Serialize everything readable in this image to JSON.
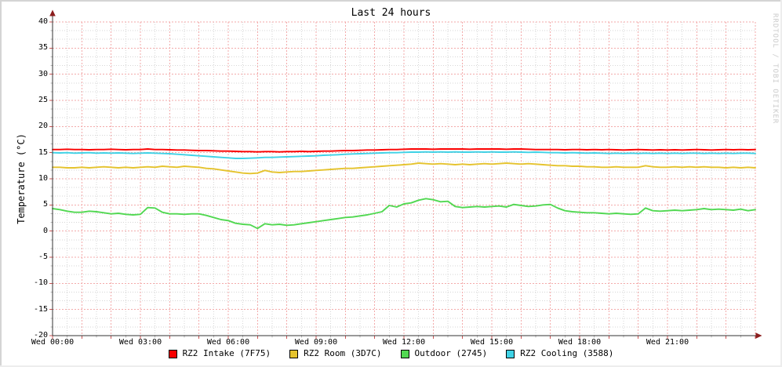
{
  "header": {
    "title": "Last 24 hours"
  },
  "watermark": "RRDTOOL / TOBI OETIKER",
  "colors": {
    "background": "#ffffff",
    "axis": "#333333",
    "arrow": "#8b1d1d",
    "grid_minor": "#d6d6d6",
    "grid_major": "#f3aaaa",
    "tick_major": "#cc5555",
    "tick_minor": "#bbbbbb",
    "text": "#000000",
    "watermark": "#cbcbcb"
  },
  "chart_data": {
    "type": "line",
    "title": "Last 24 hours",
    "xlabel": "",
    "ylabel": "Temperature (°C)",
    "ylim": [
      -20,
      40
    ],
    "xlim_hours": [
      0,
      24
    ],
    "yticks": [
      40,
      35,
      30,
      25,
      20,
      15,
      10,
      5,
      0,
      -5,
      -10,
      -15,
      -20
    ],
    "xticks": [
      {
        "hour": 0,
        "label": "Wed 00:00"
      },
      {
        "hour": 3,
        "label": "Wed 03:00"
      },
      {
        "hour": 6,
        "label": "Wed 06:00"
      },
      {
        "hour": 9,
        "label": "Wed 09:00"
      },
      {
        "hour": 12,
        "label": "Wed 12:00"
      },
      {
        "hour": 15,
        "label": "Wed 15:00"
      },
      {
        "hour": 18,
        "label": "Wed 18:00"
      },
      {
        "hour": 21,
        "label": "Wed 21:00"
      }
    ],
    "grid": {
      "x_major_step_hours": 1,
      "x_minor_step_hours": 0.5,
      "y_major_step": 5,
      "y_minor_divisions_per_major": 3,
      "grid_on": true
    },
    "legend_position": "bottom",
    "sample_step_hours": 0.25,
    "series": [
      {
        "name": "RZ2 Intake (7F75)",
        "color": "#fa0000",
        "values": [
          15.6,
          15.6,
          15.65,
          15.6,
          15.6,
          15.55,
          15.6,
          15.6,
          15.65,
          15.6,
          15.55,
          15.6,
          15.6,
          15.7,
          15.6,
          15.6,
          15.55,
          15.5,
          15.5,
          15.45,
          15.4,
          15.4,
          15.35,
          15.3,
          15.3,
          15.25,
          15.2,
          15.2,
          15.15,
          15.2,
          15.2,
          15.15,
          15.2,
          15.2,
          15.25,
          15.2,
          15.25,
          15.3,
          15.3,
          15.35,
          15.4,
          15.4,
          15.45,
          15.5,
          15.5,
          15.55,
          15.6,
          15.6,
          15.65,
          15.7,
          15.7,
          15.7,
          15.65,
          15.7,
          15.7,
          15.7,
          15.7,
          15.65,
          15.7,
          15.7,
          15.7,
          15.7,
          15.65,
          15.7,
          15.7,
          15.65,
          15.6,
          15.6,
          15.6,
          15.6,
          15.55,
          15.6,
          15.6,
          15.55,
          15.6,
          15.55,
          15.6,
          15.55,
          15.5,
          15.55,
          15.6,
          15.55,
          15.5,
          15.55,
          15.5,
          15.55,
          15.5,
          15.55,
          15.6,
          15.55,
          15.5,
          15.55,
          15.6,
          15.55,
          15.6,
          15.55,
          15.6
        ]
      },
      {
        "name": "RZ2 Room (3D7C)",
        "color": "#e5c32e",
        "values": [
          12.2,
          12.2,
          12.1,
          12.1,
          12.2,
          12.1,
          12.2,
          12.3,
          12.2,
          12.1,
          12.2,
          12.1,
          12.2,
          12.3,
          12.2,
          12.4,
          12.3,
          12.2,
          12.4,
          12.3,
          12.2,
          12.0,
          11.9,
          11.7,
          11.5,
          11.3,
          11.1,
          11.0,
          11.1,
          11.6,
          11.3,
          11.2,
          11.3,
          11.4,
          11.4,
          11.5,
          11.6,
          11.7,
          11.8,
          11.9,
          12.0,
          12.0,
          12.1,
          12.2,
          12.3,
          12.4,
          12.5,
          12.6,
          12.7,
          12.8,
          13.0,
          12.9,
          12.8,
          12.9,
          12.8,
          12.7,
          12.8,
          12.7,
          12.8,
          12.9,
          12.8,
          12.9,
          13.0,
          12.9,
          12.8,
          12.9,
          12.8,
          12.7,
          12.6,
          12.5,
          12.5,
          12.4,
          12.4,
          12.3,
          12.3,
          12.2,
          12.2,
          12.3,
          12.2,
          12.2,
          12.2,
          12.5,
          12.3,
          12.2,
          12.2,
          12.3,
          12.2,
          12.3,
          12.2,
          12.3,
          12.2,
          12.2,
          12.1,
          12.2,
          12.1,
          12.2,
          12.1
        ]
      },
      {
        "name": "Outdoor (2745)",
        "color": "#52d852",
        "values": [
          4.3,
          4.1,
          3.8,
          3.6,
          3.6,
          3.8,
          3.7,
          3.5,
          3.3,
          3.4,
          3.2,
          3.1,
          3.2,
          4.5,
          4.4,
          3.6,
          3.3,
          3.3,
          3.2,
          3.3,
          3.3,
          3.0,
          2.6,
          2.2,
          2.0,
          1.5,
          1.3,
          1.2,
          0.5,
          1.4,
          1.2,
          1.3,
          1.1,
          1.2,
          1.4,
          1.6,
          1.8,
          2.0,
          2.2,
          2.4,
          2.6,
          2.7,
          2.9,
          3.1,
          3.4,
          3.7,
          4.9,
          4.6,
          5.2,
          5.4,
          5.9,
          6.2,
          6.0,
          5.6,
          5.7,
          4.7,
          4.5,
          4.6,
          4.7,
          4.6,
          4.7,
          4.8,
          4.6,
          5.1,
          4.9,
          4.7,
          4.8,
          5.0,
          5.1,
          4.4,
          3.9,
          3.7,
          3.6,
          3.5,
          3.5,
          3.4,
          3.3,
          3.4,
          3.3,
          3.2,
          3.3,
          4.4,
          3.9,
          3.8,
          3.9,
          4.0,
          3.9,
          4.0,
          4.1,
          4.3,
          4.1,
          4.2,
          4.1,
          4.0,
          4.2,
          3.9,
          4.1
        ]
      },
      {
        "name": "RZ2 Cooling (3588)",
        "color": "#3fd2e6",
        "values": [
          15.0,
          14.95,
          15.0,
          14.9,
          14.95,
          15.0,
          14.9,
          14.95,
          14.9,
          14.95,
          14.9,
          14.85,
          14.9,
          14.95,
          14.9,
          14.85,
          14.8,
          14.7,
          14.6,
          14.5,
          14.4,
          14.3,
          14.2,
          14.1,
          14.0,
          13.9,
          13.9,
          13.95,
          14.0,
          14.1,
          14.1,
          14.15,
          14.2,
          14.25,
          14.3,
          14.35,
          14.4,
          14.5,
          14.55,
          14.6,
          14.7,
          14.75,
          14.8,
          14.85,
          14.9,
          14.95,
          15.0,
          15.0,
          15.05,
          15.1,
          15.1,
          15.15,
          15.1,
          15.15,
          15.1,
          15.15,
          15.1,
          15.1,
          15.15,
          15.1,
          15.15,
          15.1,
          15.1,
          15.15,
          15.1,
          15.05,
          15.1,
          15.05,
          15.0,
          15.0,
          14.95,
          15.0,
          14.95,
          14.9,
          14.95,
          14.9,
          14.85,
          14.9,
          14.85,
          14.9,
          14.85,
          14.9,
          14.85,
          14.9,
          14.85,
          14.9,
          14.85,
          14.9,
          14.9,
          14.85,
          14.9,
          14.85,
          14.9,
          14.85,
          14.9,
          14.9,
          14.85
        ]
      }
    ]
  }
}
